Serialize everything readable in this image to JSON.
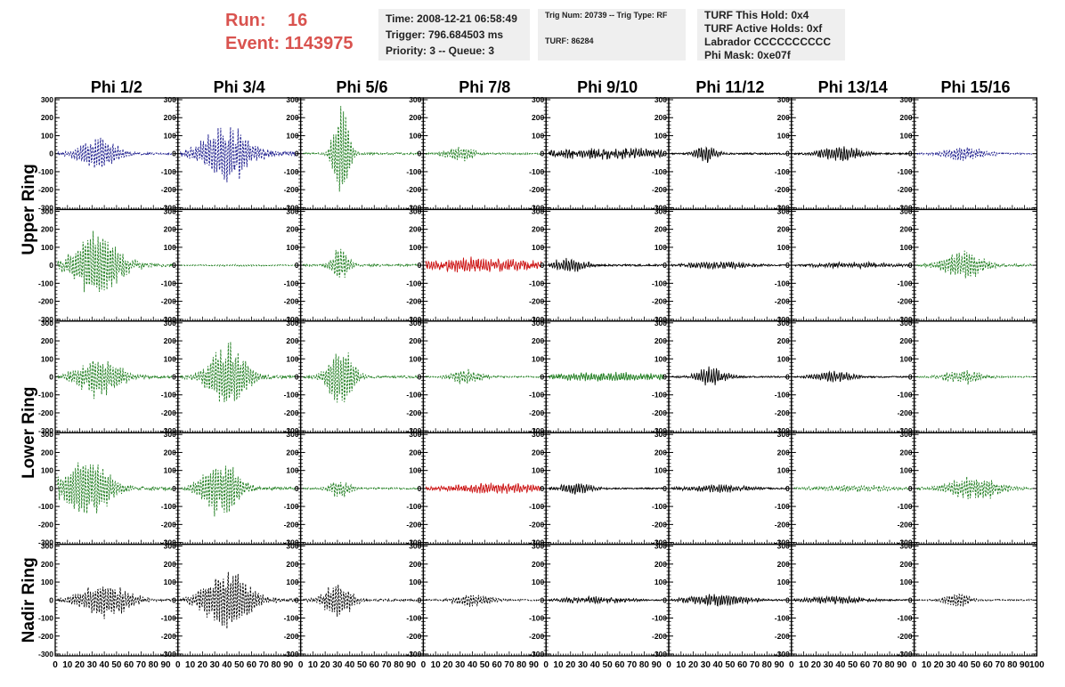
{
  "header": {
    "run_label": "Run:",
    "run_value": "16",
    "event_label": "Event:",
    "event_value": "1143975",
    "info1": [
      "Time: 2008-12-21 06:58:49",
      "Trigger: 796.684503 ms",
      "Priority: 3 -- Queue: 3"
    ],
    "info2": [
      "Trig Num: 20739 -- Trig Type: RF",
      "TURF: 86284"
    ],
    "info3": [
      "TURF This Hold: 0x4",
      "TURF Active Holds: 0xf",
      "Labrador CCCCCCCCCC",
      "Phi Mask: 0xe07f"
    ]
  },
  "chart_data": {
    "type": "line",
    "columns": [
      "Phi 1/2",
      "Phi 3/4",
      "Phi 5/6",
      "Phi 7/8",
      "Phi 9/10",
      "Phi 11/12",
      "Phi 13/14",
      "Phi 15/16"
    ],
    "row_groups": [
      {
        "label": "Upper Ring",
        "rows": [
          0,
          1
        ]
      },
      {
        "label": "Lower Ring",
        "rows": [
          2,
          3
        ]
      },
      {
        "label": "Nadir Ring",
        "rows": [
          4
        ]
      }
    ],
    "ylim": [
      -310,
      310
    ],
    "yticks": [
      -300,
      -200,
      -100,
      0,
      100,
      200,
      300
    ],
    "xlim": [
      0,
      100
    ],
    "xticks": [
      0,
      10,
      20,
      30,
      40,
      50,
      60,
      70,
      80,
      90
    ],
    "last_xtick_label": "100",
    "colors": {
      "blue": "#1a1a8c",
      "green": "#1e7d1e",
      "black": "#000000",
      "red": "#cc1111"
    },
    "panels": [
      [
        {
          "color": "blue",
          "dash": true,
          "amp": 90,
          "center": 35,
          "width": 18,
          "noise": 18
        },
        {
          "color": "blue",
          "dash": true,
          "amp": 150,
          "center": 40,
          "width": 22,
          "noise": 40
        },
        {
          "color": "green",
          "dash": true,
          "amp": 290,
          "center": 33,
          "width": 7,
          "noise": 18
        },
        {
          "color": "green",
          "dash": true,
          "amp": 45,
          "center": 30,
          "width": 12,
          "noise": 14
        },
        {
          "color": "black",
          "dash": false,
          "amp": 22,
          "center": 50,
          "width": 60,
          "noise": 18
        },
        {
          "color": "black",
          "dash": false,
          "amp": 45,
          "center": 30,
          "width": 10,
          "noise": 14
        },
        {
          "color": "black",
          "dash": false,
          "amp": 40,
          "center": 40,
          "width": 18,
          "noise": 14
        },
        {
          "color": "blue",
          "dash": true,
          "amp": 35,
          "center": 40,
          "width": 20,
          "noise": 12
        }
      ],
      [
        {
          "color": "green",
          "dash": true,
          "amp": 180,
          "center": 35,
          "width": 22,
          "noise": 30
        },
        {
          "color": "green",
          "dash": true,
          "amp": 4,
          "center": 50,
          "width": 60,
          "noise": 2
        },
        {
          "color": "green",
          "dash": true,
          "amp": 90,
          "center": 32,
          "width": 8,
          "noise": 18
        },
        {
          "color": "red",
          "dash": false,
          "amp": 30,
          "center": 50,
          "width": 60,
          "noise": 22
        },
        {
          "color": "black",
          "dash": false,
          "amp": 40,
          "center": 20,
          "width": 15,
          "noise": 16
        },
        {
          "color": "black",
          "dash": false,
          "amp": 18,
          "center": 40,
          "width": 30,
          "noise": 10
        },
        {
          "color": "black",
          "dash": false,
          "amp": 12,
          "center": 50,
          "width": 40,
          "noise": 8
        },
        {
          "color": "green",
          "dash": true,
          "amp": 80,
          "center": 40,
          "width": 18,
          "noise": 20
        }
      ],
      [
        {
          "color": "green",
          "dash": true,
          "amp": 110,
          "center": 35,
          "width": 20,
          "noise": 22
        },
        {
          "color": "green",
          "dash": true,
          "amp": 170,
          "center": 40,
          "width": 18,
          "noise": 30
        },
        {
          "color": "green",
          "dash": true,
          "amp": 170,
          "center": 33,
          "width": 12,
          "noise": 22
        },
        {
          "color": "green",
          "dash": true,
          "amp": 40,
          "center": 35,
          "width": 14,
          "noise": 14
        },
        {
          "color": "green",
          "dash": false,
          "amp": 20,
          "center": 50,
          "width": 60,
          "noise": 10
        },
        {
          "color": "black",
          "dash": false,
          "amp": 50,
          "center": 35,
          "width": 14,
          "noise": 14
        },
        {
          "color": "black",
          "dash": false,
          "amp": 30,
          "center": 35,
          "width": 18,
          "noise": 12
        },
        {
          "color": "green",
          "dash": true,
          "amp": 35,
          "center": 40,
          "width": 18,
          "noise": 12
        }
      ],
      [
        {
          "color": "green",
          "dash": true,
          "amp": 170,
          "center": 25,
          "width": 22,
          "noise": 30
        },
        {
          "color": "green",
          "dash": true,
          "amp": 150,
          "center": 35,
          "width": 18,
          "noise": 28
        },
        {
          "color": "green",
          "dash": true,
          "amp": 50,
          "center": 32,
          "width": 10,
          "noise": 14
        },
        {
          "color": "red",
          "dash": false,
          "amp": 22,
          "center": 60,
          "width": 45,
          "noise": 14
        },
        {
          "color": "black",
          "dash": false,
          "amp": 30,
          "center": 25,
          "width": 14,
          "noise": 12
        },
        {
          "color": "black",
          "dash": false,
          "amp": 18,
          "center": 40,
          "width": 30,
          "noise": 10
        },
        {
          "color": "green",
          "dash": true,
          "amp": 15,
          "center": 50,
          "width": 40,
          "noise": 8
        },
        {
          "color": "green",
          "dash": true,
          "amp": 60,
          "center": 50,
          "width": 25,
          "noise": 16
        }
      ],
      [
        {
          "color": "black",
          "dash": true,
          "amp": 90,
          "center": 40,
          "width": 24,
          "noise": 18
        },
        {
          "color": "black",
          "dash": true,
          "amp": 170,
          "center": 40,
          "width": 22,
          "noise": 32
        },
        {
          "color": "black",
          "dash": true,
          "amp": 90,
          "center": 30,
          "width": 14,
          "noise": 18
        },
        {
          "color": "black",
          "dash": true,
          "amp": 30,
          "center": 40,
          "width": 18,
          "noise": 12
        },
        {
          "color": "black",
          "dash": false,
          "amp": 16,
          "center": 40,
          "width": 30,
          "noise": 10
        },
        {
          "color": "black",
          "dash": false,
          "amp": 28,
          "center": 40,
          "width": 28,
          "noise": 12
        },
        {
          "color": "black",
          "dash": false,
          "amp": 18,
          "center": 35,
          "width": 30,
          "noise": 10
        },
        {
          "color": "black",
          "dash": true,
          "amp": 40,
          "center": 35,
          "width": 12,
          "noise": 12
        }
      ]
    ]
  }
}
